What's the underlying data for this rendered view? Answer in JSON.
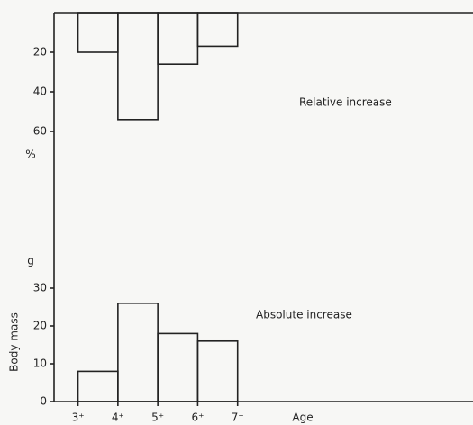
{
  "chart_data": [
    {
      "type": "histogram",
      "annotation": "Relative increase",
      "ylabel": "%",
      "bins": [
        3,
        4,
        5,
        6,
        7
      ],
      "values": [
        20,
        54,
        26,
        17
      ],
      "xlim": [
        2.4,
        12.9
      ],
      "ylim": [
        0,
        60
      ],
      "yticks": [
        20,
        40,
        60
      ],
      "inverted": true
    },
    {
      "type": "histogram",
      "annotation": "Absolute increase",
      "ylabel": "Body mass",
      "yunit": "g",
      "xlabel": "Age",
      "bins": [
        3,
        4,
        5,
        6,
        7
      ],
      "values": [
        8,
        26,
        18,
        16
      ],
      "xlim": [
        2.4,
        12.9
      ],
      "ylim": [
        0,
        30
      ],
      "yticks": [
        0,
        10,
        20,
        30
      ],
      "xticks": [
        {
          "value": 3,
          "label": "3⁺"
        },
        {
          "value": 4,
          "label": "4⁺"
        },
        {
          "value": 5,
          "label": "5⁺"
        },
        {
          "value": 6,
          "label": "6⁺"
        },
        {
          "value": 7,
          "label": "7⁺"
        }
      ]
    }
  ]
}
